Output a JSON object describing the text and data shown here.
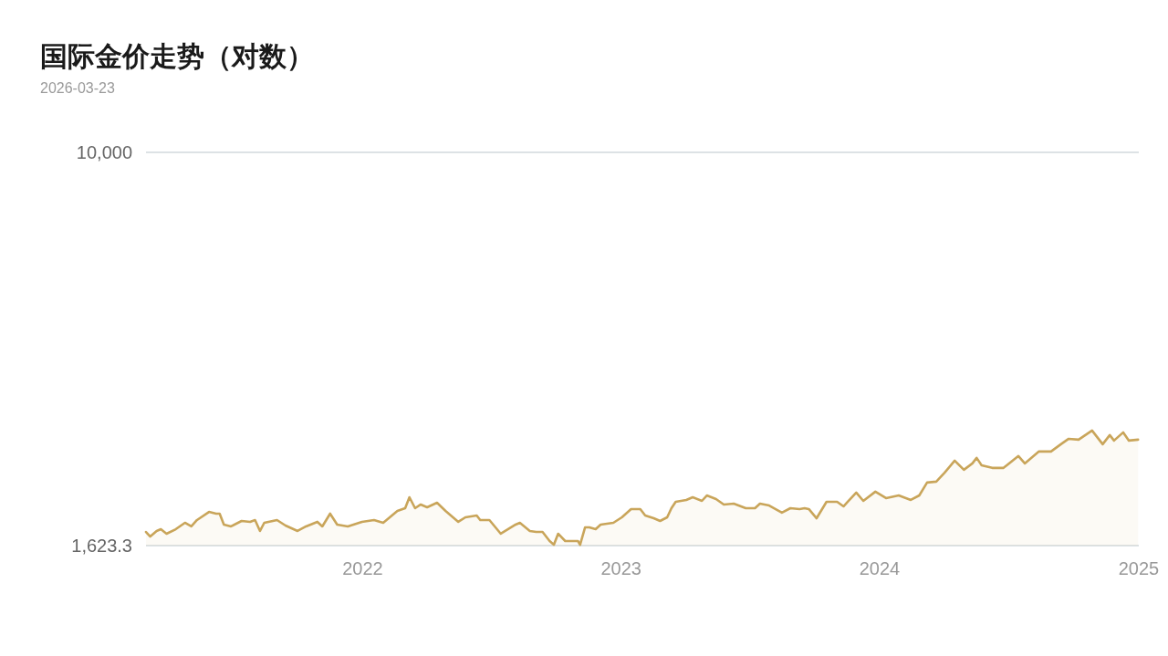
{
  "chart_data": {
    "type": "area",
    "title": "国际金价走势（对数）",
    "subtitle": "2026-03-23",
    "log": "y",
    "xlim": [
      "2021-03-01",
      "2025-01-01"
    ],
    "xticks": [
      {
        "value": "2022-01-01",
        "label": "2022"
      },
      {
        "value": "2023-01-01",
        "label": "2023"
      },
      {
        "value": "2024-01-01",
        "label": "2024"
      },
      {
        "value": "2025-01-01",
        "label": "2025"
      }
    ],
    "ylim": [
      1623.3,
      10000
    ],
    "yticks": [
      {
        "value": 1623.3,
        "label": "1,623.3"
      },
      {
        "value": 10000,
        "label": "10,000"
      }
    ],
    "series": [
      {
        "color": "#c9a55a",
        "x": [
          "2021-03-01",
          "2021-03-07",
          "2021-03-16",
          "2021-03-22",
          "2021-03-30",
          "2021-04-12",
          "2021-04-25",
          "2021-05-04",
          "2021-05-12",
          "2021-05-29",
          "2021-06-08",
          "2021-06-13",
          "2021-06-19",
          "2021-06-29",
          "2021-07-14",
          "2021-07-26",
          "2021-08-02",
          "2021-08-09",
          "2021-08-15",
          "2021-09-02",
          "2021-09-14",
          "2021-10-01",
          "2021-10-13",
          "2021-10-29",
          "2021-11-05",
          "2021-11-16",
          "2021-11-26",
          "2021-12-11",
          "2021-12-31",
          "2022-01-17",
          "2022-01-30",
          "2022-02-19",
          "2022-03-02",
          "2022-03-08",
          "2022-03-16",
          "2022-03-24",
          "2022-04-02",
          "2022-04-16",
          "2022-04-28",
          "2022-05-16",
          "2022-05-26",
          "2022-06-11",
          "2022-06-16",
          "2022-06-29",
          "2022-07-15",
          "2022-08-05",
          "2022-08-11",
          "2022-08-25",
          "2022-09-03",
          "2022-09-12",
          "2022-09-22",
          "2022-09-28",
          "2022-10-04",
          "2022-10-14",
          "2022-11-01",
          "2022-11-04",
          "2022-11-11",
          "2022-11-17",
          "2022-11-26",
          "2022-12-03",
          "2022-12-21",
          "2023-01-02",
          "2023-01-15",
          "2023-01-28",
          "2023-02-04",
          "2023-02-16",
          "2023-02-25",
          "2023-03-07",
          "2023-03-13",
          "2023-03-19",
          "2023-04-03",
          "2023-04-12",
          "2023-04-25",
          "2023-05-02",
          "2023-05-15",
          "2023-05-26",
          "2023-06-09",
          "2023-06-26",
          "2023-07-09",
          "2023-07-16",
          "2023-07-29",
          "2023-08-16",
          "2023-08-28",
          "2023-09-10",
          "2023-09-17",
          "2023-09-23",
          "2023-10-04",
          "2023-10-18",
          "2023-11-02",
          "2023-11-11",
          "2023-11-17",
          "2023-11-29",
          "2023-12-09",
          "2023-12-26",
          "2024-01-10",
          "2024-01-28",
          "2024-02-14",
          "2024-02-26",
          "2024-03-08",
          "2024-03-21",
          "2024-04-02",
          "2024-04-16",
          "2024-04-29",
          "2024-05-11",
          "2024-05-17",
          "2024-05-24",
          "2024-06-08",
          "2024-06-24",
          "2024-07-15",
          "2024-07-24",
          "2024-08-13",
          "2024-08-30",
          "2024-09-13",
          "2024-09-24",
          "2024-10-08",
          "2024-10-27",
          "2024-11-11",
          "2024-11-21",
          "2024-11-27",
          "2024-12-10",
          "2024-12-18",
          "2024-12-31"
        ],
        "values": [
          1729,
          1693,
          1737,
          1751,
          1715,
          1751,
          1804,
          1774,
          1827,
          1897,
          1882,
          1882,
          1789,
          1774,
          1819,
          1812,
          1827,
          1737,
          1804,
          1827,
          1781,
          1737,
          1774,
          1812,
          1774,
          1882,
          1789,
          1774,
          1812,
          1827,
          1804,
          1906,
          1930,
          2030,
          1930,
          1963,
          1938,
          1979,
          1906,
          1812,
          1850,
          1866,
          1827,
          1827,
          1715,
          1789,
          1804,
          1737,
          1729,
          1729,
          1658,
          1630,
          1715,
          1658,
          1658,
          1630,
          1766,
          1766,
          1751,
          1789,
          1804,
          1850,
          1922,
          1922,
          1866,
          1842,
          1819,
          1850,
          1930,
          1988,
          2005,
          2030,
          1996,
          2047,
          2013,
          1963,
          1971,
          1930,
          1930,
          1971,
          1954,
          1890,
          1930,
          1922,
          1930,
          1922,
          1842,
          1988,
          1988,
          1946,
          1988,
          2074,
          1996,
          2083,
          2022,
          2047,
          2005,
          2047,
          2173,
          2182,
          2276,
          2404,
          2305,
          2374,
          2435,
          2354,
          2325,
          2325,
          2456,
          2374,
          2508,
          2508,
          2594,
          2660,
          2649,
          2764,
          2594,
          2706,
          2638,
          2740,
          2638,
          2649
        ]
      }
    ]
  }
}
